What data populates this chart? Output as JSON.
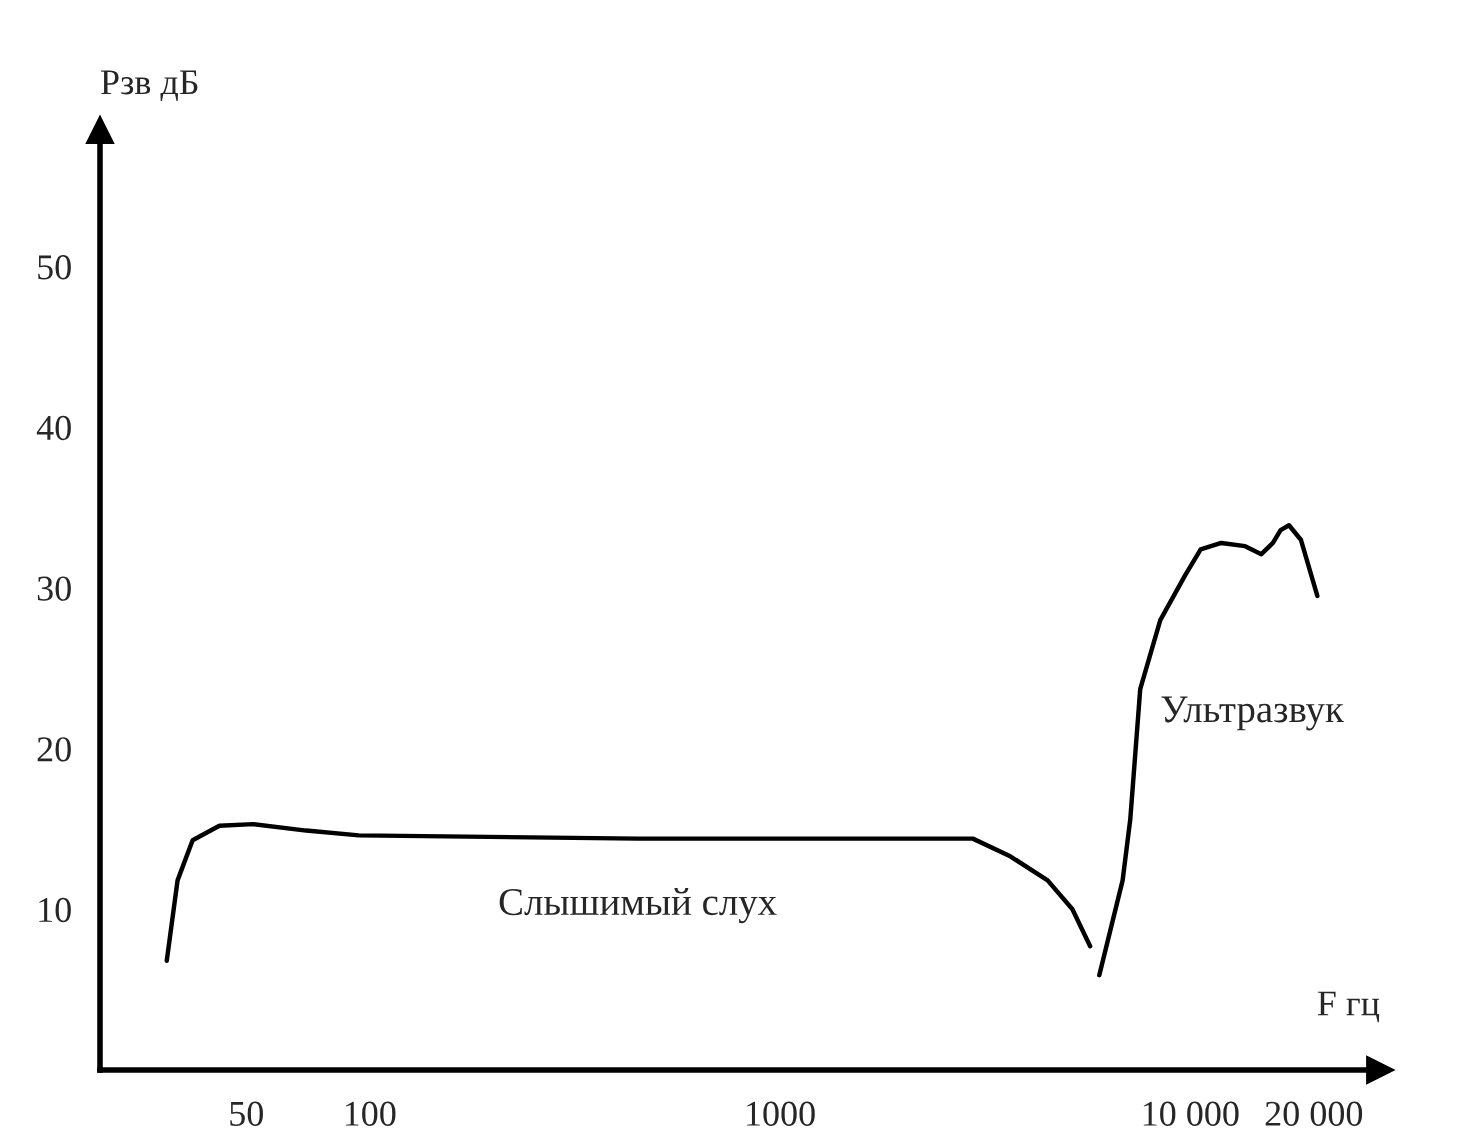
{
  "chart_data": {
    "type": "line",
    "xlabel": "F гц",
    "ylabel": "Рзв дБ",
    "xlim": [
      22,
      29000
    ],
    "ylim": [
      0,
      58.5
    ],
    "xticks": [
      50,
      100,
      1000,
      {
        "value": 10000,
        "label": "10 000"
      },
      {
        "value": 20000,
        "label": "20 000"
      }
    ],
    "yticks": [
      10,
      20,
      30,
      40,
      50
    ],
    "series": [
      {
        "color": "#000000",
        "x": [
          32,
          34,
          37,
          43,
          52,
          70,
          94,
          450,
          2950,
          3640,
          4490,
          5160,
          5700
        ],
        "values": [
          6.8,
          11.8,
          14.3,
          15.2,
          15.3,
          14.9,
          14.6,
          14.4,
          14.4,
          13.3,
          11.8,
          10,
          7.7
        ]
      },
      {
        "color": "#000000",
        "x": [
          6000,
          6840,
          7140,
          7550,
          8450,
          9720,
          10600,
          11900,
          13600,
          14900,
          15900,
          16600,
          17400,
          18600,
          20400
        ],
        "values": [
          5.9,
          11.8,
          15.6,
          23.7,
          28.0,
          30.8,
          32.4,
          32.8,
          32.6,
          32.1,
          32.8,
          33.6,
          33.9,
          33.0,
          29.5
        ]
      }
    ],
    "annotations": [
      "Слышимый слух",
      "Ультразвук"
    ],
    "grid": false,
    "log": "x"
  }
}
